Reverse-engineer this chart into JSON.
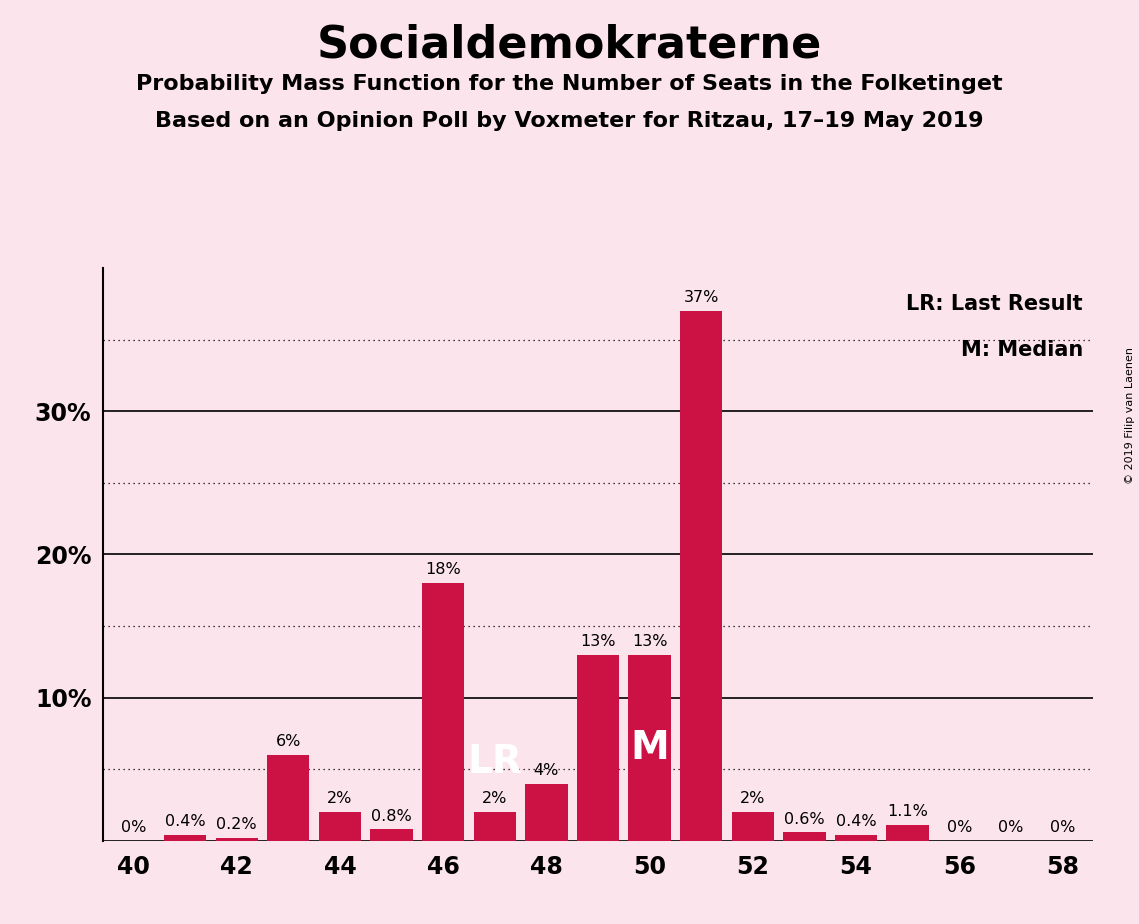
{
  "title": "Socialdemokraterne",
  "subtitle1": "Probability Mass Function for the Number of Seats in the Folketinget",
  "subtitle2": "Based on an Opinion Poll by Voxmeter for Ritzau, 17–19 May 2019",
  "copyright": "© 2019 Filip van Laenen",
  "seats": [
    40,
    41,
    42,
    43,
    44,
    45,
    46,
    47,
    48,
    49,
    50,
    51,
    52,
    53,
    54,
    55,
    56,
    57,
    58
  ],
  "probabilities": [
    0.0,
    0.4,
    0.2,
    6.0,
    2.0,
    0.8,
    18.0,
    2.0,
    4.0,
    13.0,
    13.0,
    37.0,
    2.0,
    0.6,
    0.4,
    1.1,
    0.0,
    0.0,
    0.0
  ],
  "labels": [
    "0%",
    "0.4%",
    "0.2%",
    "6%",
    "2%",
    "0.8%",
    "18%",
    "2%",
    "4%",
    "13%",
    "13%",
    "37%",
    "2%",
    "0.6%",
    "0.4%",
    "1.1%",
    "0%",
    "0%",
    "0%"
  ],
  "bar_color": "#cc1144",
  "lr_seat": 47,
  "median_seat": 50,
  "background_color": "#fce4ec",
  "legend_lr": "LR: Last Result",
  "legend_m": "M: Median",
  "solid_yticks": [
    0,
    10,
    20,
    30
  ],
  "dotted_yticks": [
    5,
    15,
    25,
    35
  ],
  "xlabel_seats": [
    40,
    42,
    44,
    46,
    48,
    50,
    52,
    54,
    56,
    58
  ],
  "ymax": 40,
  "label_fontsize": 11.5,
  "bar_width": 0.82
}
